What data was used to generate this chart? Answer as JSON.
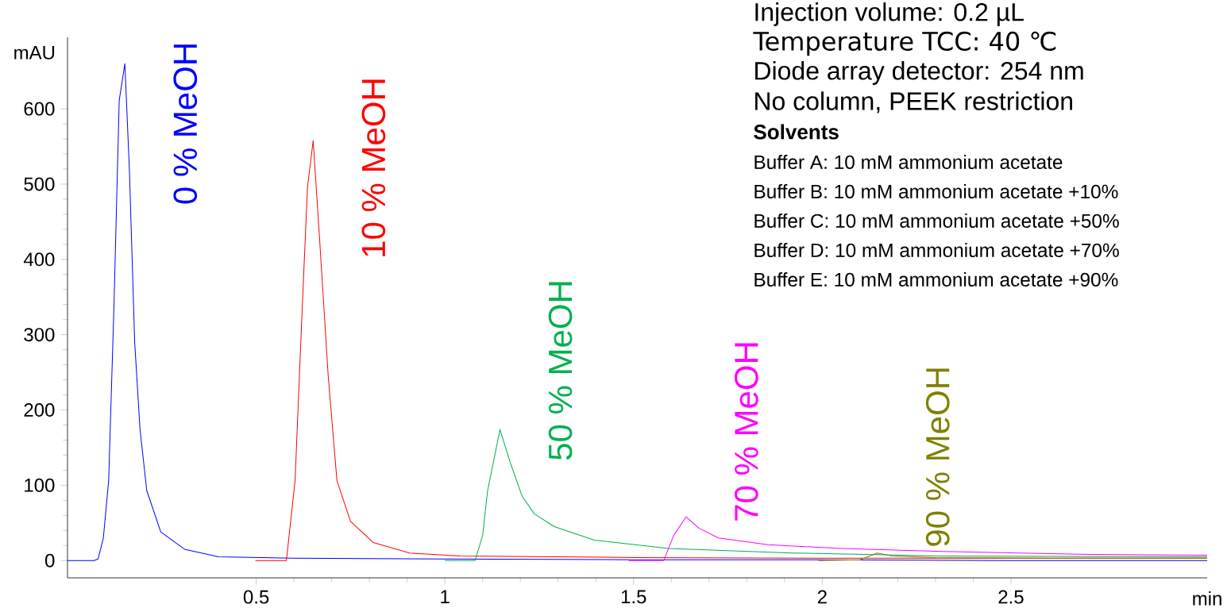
{
  "chart_data": {
    "type": "line",
    "xlabel": "min",
    "ylabel": "mAU",
    "xlim": [
      0,
      3.02
    ],
    "ylim": [
      -23,
      695
    ],
    "xticks": [
      0.5,
      1,
      1.5,
      2,
      2.5
    ],
    "yticks": [
      0,
      100,
      200,
      300,
      400,
      500,
      600
    ],
    "series": [
      {
        "name": "0 % MeOH",
        "color": "#0000ff",
        "x": [
          0,
          0.07,
          0.081,
          0.095,
          0.109,
          0.123,
          0.137,
          0.152,
          0.164,
          0.178,
          0.192,
          0.21,
          0.247,
          0.31,
          0.4,
          0.6,
          1.0,
          1.5,
          2.0,
          2.5,
          3.02
        ],
        "values": [
          0,
          0,
          2,
          30,
          106,
          336,
          611,
          660,
          519,
          290,
          175,
          93,
          38,
          15,
          5,
          3,
          2,
          1,
          1,
          0,
          0
        ]
      },
      {
        "name": "10 % MeOH",
        "color": "#ff0000",
        "x": [
          0.498,
          0.58,
          0.603,
          0.622,
          0.636,
          0.651,
          0.668,
          0.691,
          0.714,
          0.75,
          0.81,
          0.906,
          1.04,
          1.5,
          2.0,
          2.5,
          3.02
        ],
        "values": [
          0,
          0,
          106,
          336,
          496,
          558,
          427,
          244,
          106,
          52,
          24,
          10,
          6,
          4,
          3,
          3,
          3
        ]
      },
      {
        "name": "50 % MeOH",
        "color": "#00b050",
        "x": [
          1.0,
          1.08,
          1.1,
          1.113,
          1.146,
          1.172,
          1.205,
          1.237,
          1.29,
          1.396,
          1.593,
          1.92,
          2.317,
          3.02
        ],
        "values": [
          0,
          0,
          33,
          92,
          174,
          132,
          85,
          62,
          45,
          27,
          16,
          10,
          6,
          5
        ]
      },
      {
        "name": "70 % MeOH",
        "color": "#ff00ff",
        "x": [
          1.487,
          1.58,
          1.606,
          1.639,
          1.673,
          1.725,
          1.856,
          2.05,
          2.317,
          2.71,
          3.02
        ],
        "values": [
          0,
          0,
          33,
          58,
          43,
          30,
          21,
          16,
          12,
          8,
          7
        ]
      },
      {
        "name": "90 % MeOH",
        "color": "#808000",
        "x": [
          1.99,
          2.1,
          2.146,
          2.185,
          2.3,
          2.6,
          3.02
        ],
        "values": [
          0,
          1,
          10,
          6,
          4,
          3,
          3
        ]
      }
    ],
    "annotations": [
      "Injection volume: 0.2 µL",
      "Temperature TCC: 40 ℃",
      "Diode array detector: 254 nm",
      "No column, PEEK restriction",
      "Solvents",
      "Buffer A: 10 mM ammonium acetate",
      "Buffer B: 10 mM ammonium acetate +10%",
      "Buffer C: 10 mM ammonium acetate +50%",
      "Buffer D: 10 mM ammonium acetate +70%",
      "Buffer E: 10 mM ammonium acetate +90%"
    ]
  }
}
